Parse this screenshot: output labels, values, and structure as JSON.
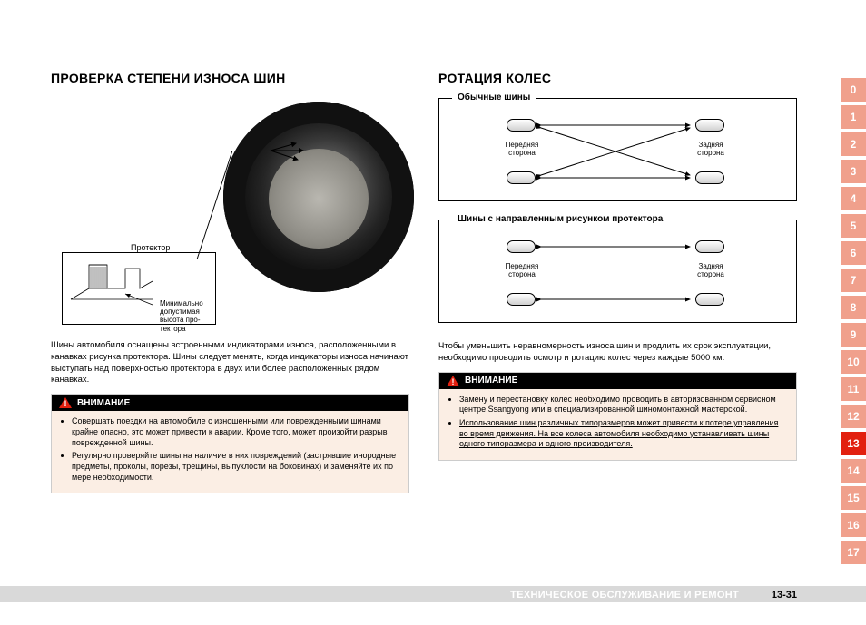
{
  "left": {
    "title": "ПРОВЕРКА СТЕПЕНИ ИЗНОСА ШИН",
    "tread_label": "Протектор",
    "min_label": "Минимально\nдопустимая\nвысота про-\nтектора",
    "para": "Шины автомобиля оснащены встроенными индикаторами износа, расположенными в канавках рисунка протектора. Шины следует менять, когда индикаторы износа начинают выступать над поверхностью протектора в двух или более расположенных рядом канавках.",
    "warn_title": "ВНИМАНИЕ",
    "warn_items": [
      "Совершать поездки на автомобиле с изношенными или поврежденными шинами крайне опасно, это может привести к аварии. Кроме того, может произойти разрыв поврежденной шины.",
      "Регулярно проверяйте шины на наличие в них повреждений (застрявшие инородные предметы, проколы, порезы, трещины, выпуклости на боковинах) и заменяйте их по мере необходимости."
    ]
  },
  "right": {
    "title": "РОТАЦИЯ КОЛЕС",
    "box1_title": "Обычные шины",
    "box2_title": "Шины с направленным рисунком протектора",
    "front_label": "Передняя\nсторона",
    "rear_label": "Задняя\nсторона",
    "para": "Чтобы уменьшить неравномерность износа шин и продлить их срок эксплуатации, необходимо проводить осмотр и ротацию колес через каждые 5000 км.",
    "warn_title": "ВНИМАНИЕ",
    "warn_items": [
      "Замену и перестановку колес необходимо проводить в авторизованном сервисном центре Ssangyong или в специализированной шиномонтажной мастерской.",
      "Использование шин различных типоразмеров может привести к потере управления во время движения. На все колеса автомобиля необходимо устанавливать шины одного типоразмера и одного производителя."
    ]
  },
  "footer": {
    "section": "ТЕХНИЧЕСКОЕ ОБСЛУЖИВАНИЕ И РЕМОНТ",
    "page": "13-31"
  },
  "nav": {
    "items": [
      "0",
      "1",
      "2",
      "3",
      "4",
      "5",
      "6",
      "7",
      "8",
      "9",
      "10",
      "11",
      "12",
      "13",
      "14",
      "15",
      "16",
      "17"
    ],
    "active": "13"
  },
  "colors": {
    "warn_bg": "#fbeee4",
    "nav_inactive": "#f0a08c",
    "nav_active": "#e2200f",
    "footer_bar": "#d9d9d9"
  }
}
